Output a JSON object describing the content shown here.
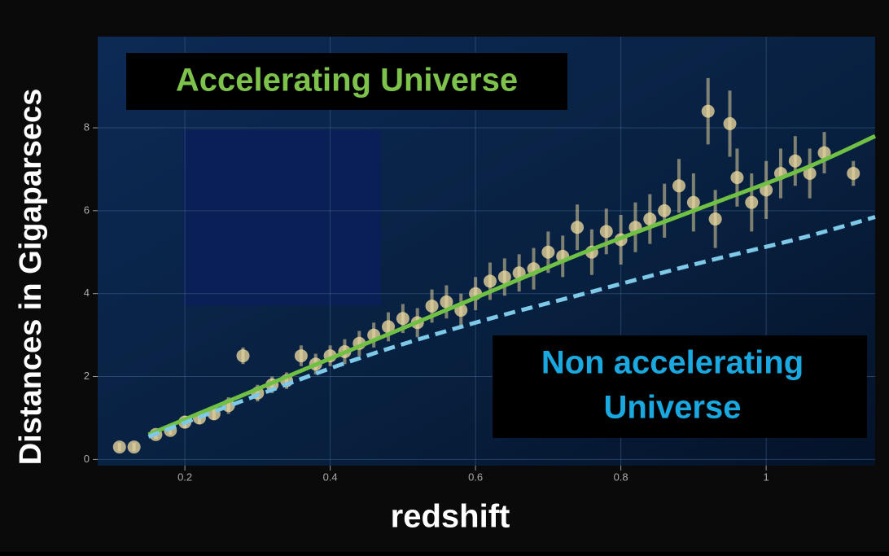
{
  "chart_data": {
    "type": "scatter",
    "x_label": "redshift",
    "y_label": "Distances in Gigaparsecs",
    "annotations": [
      "Accelerating Universe",
      "Non accelerating",
      "Universe"
    ],
    "xlim": [
      0.08,
      1.15
    ],
    "ylim": [
      -0.15,
      10.2
    ],
    "xticks": [
      0.2,
      0.4,
      0.6,
      0.8,
      1
    ],
    "yticks": [
      0,
      2,
      4,
      6,
      8
    ],
    "grid": true,
    "series": [
      {
        "type": "scatter",
        "color": "#f3dfa2",
        "x": [
          0.11,
          0.13,
          0.16,
          0.18,
          0.2,
          0.22,
          0.24,
          0.26,
          0.28,
          0.3,
          0.32,
          0.34,
          0.36,
          0.38,
          0.4,
          0.42,
          0.44,
          0.46,
          0.48,
          0.5,
          0.52,
          0.54,
          0.56,
          0.58,
          0.6,
          0.62,
          0.64,
          0.66,
          0.68,
          0.7,
          0.72,
          0.74,
          0.76,
          0.78,
          0.8,
          0.82,
          0.84,
          0.86,
          0.88,
          0.9,
          0.92,
          0.93,
          0.95,
          0.96,
          0.98,
          1.0,
          1.02,
          1.04,
          1.06,
          1.08,
          1.12
        ],
        "values": [
          0.3,
          0.3,
          0.6,
          0.7,
          0.9,
          1.0,
          1.1,
          1.3,
          2.5,
          1.6,
          1.8,
          1.9,
          2.5,
          2.3,
          2.5,
          2.6,
          2.8,
          3.0,
          3.2,
          3.4,
          3.3,
          3.7,
          3.8,
          3.6,
          4.0,
          4.3,
          4.4,
          4.5,
          4.6,
          5.0,
          4.9,
          5.6,
          5.0,
          5.5,
          5.3,
          5.6,
          5.8,
          6.0,
          6.6,
          6.2,
          8.4,
          5.8,
          8.1,
          6.8,
          6.2,
          6.5,
          6.9,
          7.2,
          6.9,
          7.4,
          6.9
        ],
        "errors": [
          0.1,
          0.1,
          0.1,
          0.1,
          0.15,
          0.15,
          0.15,
          0.2,
          0.2,
          0.2,
          0.2,
          0.2,
          0.25,
          0.25,
          0.25,
          0.3,
          0.3,
          0.3,
          0.35,
          0.35,
          0.35,
          0.4,
          0.4,
          0.4,
          0.4,
          0.45,
          0.45,
          0.45,
          0.5,
          0.5,
          0.5,
          0.55,
          0.55,
          0.55,
          0.6,
          0.6,
          0.6,
          0.65,
          0.65,
          0.7,
          0.8,
          0.7,
          0.8,
          0.7,
          0.7,
          0.7,
          0.6,
          0.6,
          0.6,
          0.5,
          0.3
        ]
      },
      {
        "type": "line",
        "color": "#6fc043",
        "dashed": false,
        "x": [
          0.15,
          0.3,
          0.45,
          0.6,
          0.75,
          0.9,
          1.05,
          1.15
        ],
        "values": [
          0.6,
          1.7,
          2.8,
          3.9,
          5.0,
          6.0,
          7.0,
          7.8
        ]
      },
      {
        "type": "line",
        "color": "#7ec8e8",
        "dashed": true,
        "x": [
          0.15,
          0.3,
          0.45,
          0.6,
          0.75,
          0.9,
          1.05,
          1.15
        ],
        "values": [
          0.55,
          1.55,
          2.5,
          3.3,
          4.0,
          4.7,
          5.35,
          5.85
        ]
      }
    ]
  }
}
